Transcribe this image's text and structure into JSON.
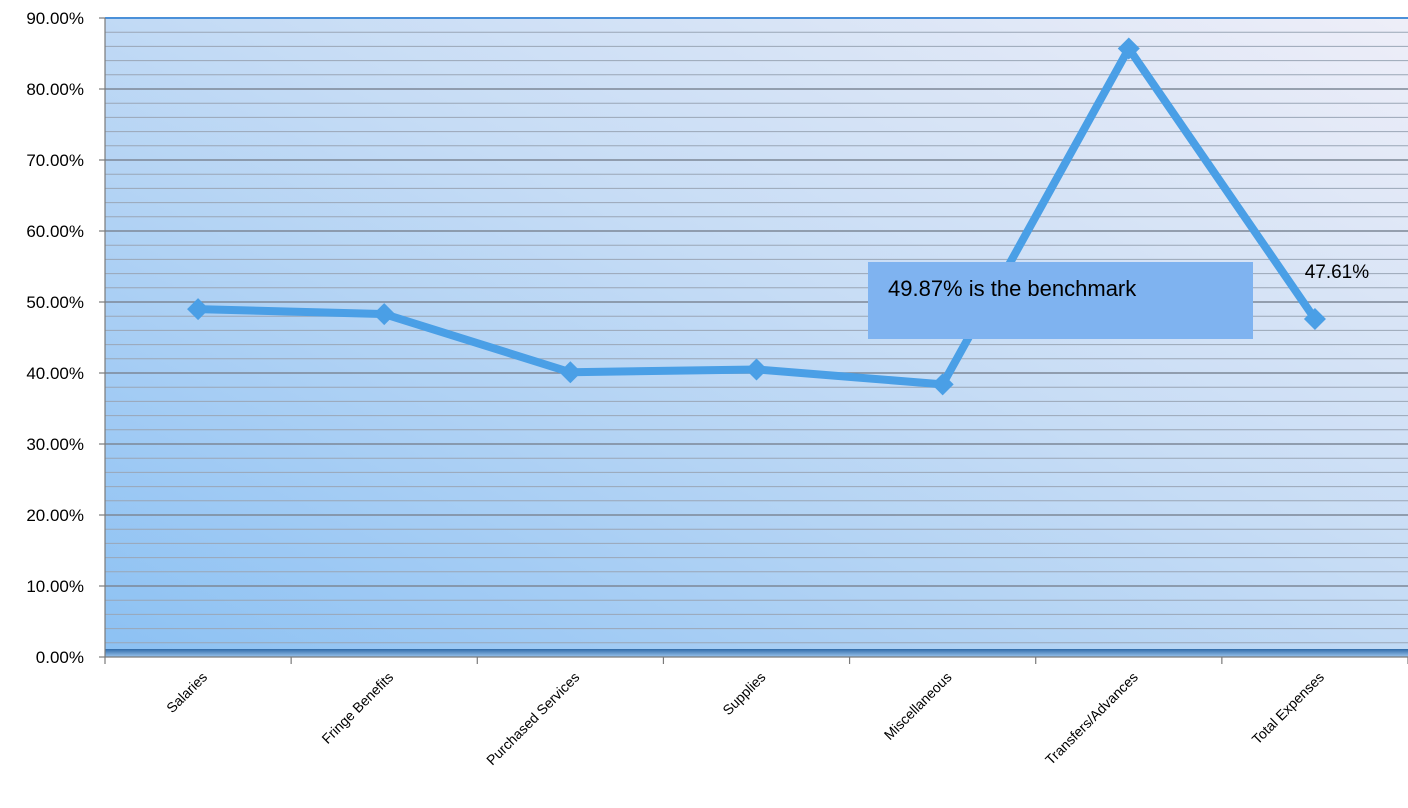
{
  "chart_data": {
    "type": "line",
    "categories": [
      "Salaries",
      "Fringe Benefits",
      "Purchased  Services",
      "Supplies",
      "Miscellaneous",
      "Transfers/Advances",
      "Total Expenses"
    ],
    "series": [
      {
        "values": [
          49.0,
          48.3,
          40.1,
          40.5,
          38.4,
          85.7,
          47.61
        ],
        "color": "#4a9fe6"
      }
    ],
    "ylim": [
      0,
      90
    ],
    "yticks": [
      "0.00%",
      "10.00%",
      "20.00%",
      "30.00%",
      "40.00%",
      "50.00%",
      "60.00%",
      "70.00%",
      "80.00%",
      "90.00%"
    ],
    "y_format": "percent",
    "data_label": {
      "category": "Total Expenses",
      "text": "47.61%"
    },
    "annotation": "49.87% is the benchmark",
    "grid": true,
    "legend": "none",
    "plot_background": "gradient light blue",
    "line_color": "#4a9fe6"
  }
}
